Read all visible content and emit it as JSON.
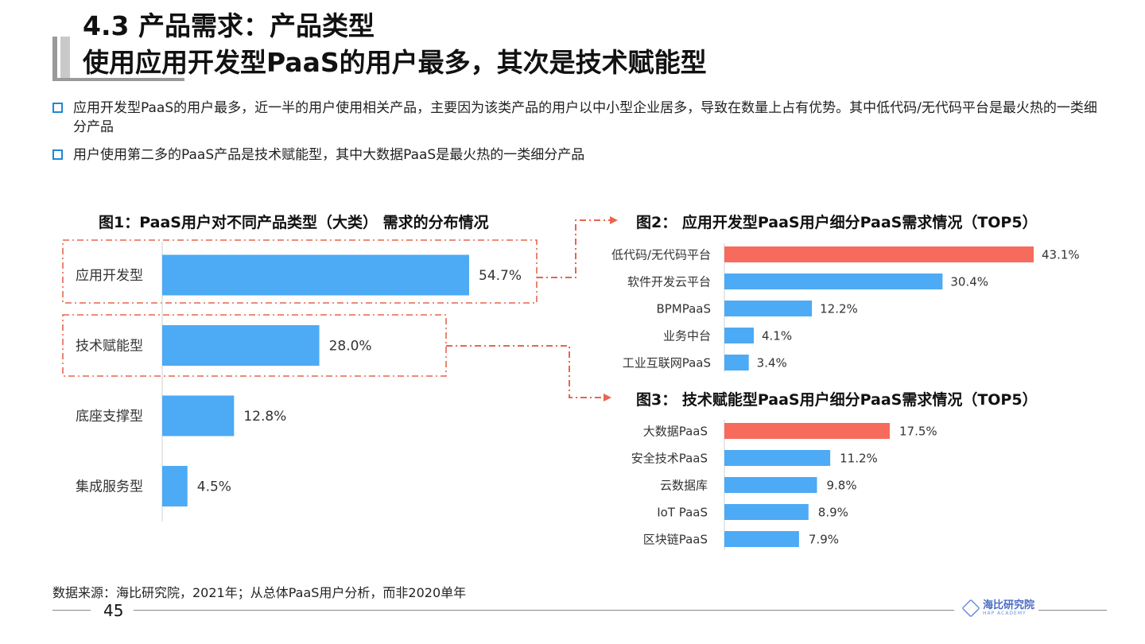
{
  "slide": {
    "title_line1": "4.3 产品需求：产品类型",
    "title_line2": "使用应用开发型PaaS的用户最多，其次是技术赋能型",
    "bullets": [
      "应用开发型PaaS的用户最多，近一半的用户使用相关产品，主要因为该类产品的用户以中小型企业居多，导致在数量上占有优势。其中低代码/无代码平台是最火热的一类细分产品",
      "用户使用第二多的PaaS产品是技术赋能型，其中大数据PaaS是最火热的一类细分产品"
    ],
    "source": "数据来源：海比研究院，2021年；从总体PaaS用户分析，而非2020单年",
    "page_number": "45",
    "logo_text": "海比研究院",
    "logo_sub": "HAP ACADEMY"
  },
  "colors": {
    "bar_blue": "#4daaf5",
    "bar_highlight": "#f76b5c",
    "dash_red": "#e8654f",
    "bullet_blue": "#1e88d6"
  },
  "chart_data": [
    {
      "type": "bar",
      "orientation": "horizontal",
      "title": "图1：PaaS用户对不同产品类型（大类） 需求的分布情况",
      "categories": [
        "应用开发型",
        "技术赋能型",
        "底座支撑型",
        "集成服务型"
      ],
      "values": [
        54.7,
        28.0,
        12.8,
        4.5
      ],
      "labels": [
        "54.7%",
        "28.0%",
        "12.8%",
        "4.5%"
      ],
      "xlim": [
        0,
        70
      ]
    },
    {
      "type": "bar",
      "orientation": "horizontal",
      "title": "图2： 应用开发型PaaS用户细分PaaS需求情况（TOP5）",
      "categories": [
        "低代码/无代码平台",
        "软件开发云平台",
        "BPMPaaS",
        "业务中台",
        "工业互联网PaaS"
      ],
      "values": [
        43.1,
        30.4,
        12.2,
        4.1,
        3.4
      ],
      "labels": [
        "43.1%",
        "30.4%",
        "12.2%",
        "4.1%",
        "3.4%"
      ],
      "highlight_index": 0,
      "xlim": [
        0,
        43.1
      ]
    },
    {
      "type": "bar",
      "orientation": "horizontal",
      "title": "图3： 技术赋能型PaaS用户细分PaaS需求情况（TOP5）",
      "categories": [
        "大数据PaaS",
        "安全技术PaaS",
        "云数据库",
        "IoT PaaS",
        "区块链PaaS"
      ],
      "values": [
        17.5,
        11.2,
        9.8,
        8.9,
        7.9
      ],
      "labels": [
        "17.5%",
        "11.2%",
        "9.8%",
        "8.9%",
        "7.9%"
      ],
      "highlight_index": 0,
      "xlim": [
        0,
        28
      ]
    }
  ]
}
